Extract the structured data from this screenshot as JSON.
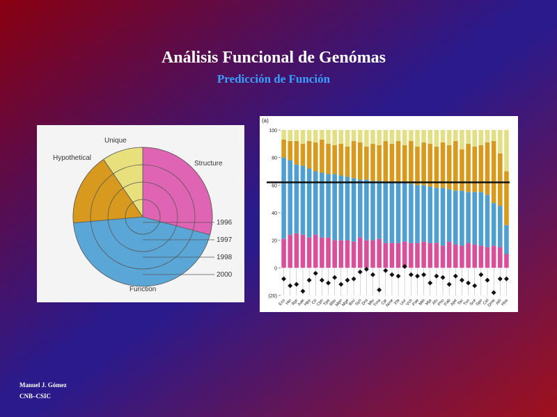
{
  "title": "Análisis Funcional de Genómas",
  "subtitle": "Predicción de Función",
  "footer": [
    "Manuel J. Gómez",
    "CNB–CSIC"
  ],
  "figure_left": {
    "unique": "Unique",
    "hypothetical": "Hypothetical",
    "structure": "Structure",
    "function": "Function",
    "years": [
      "1996",
      "1997",
      "1998",
      "2000"
    ]
  },
  "chart_data": {
    "type": "bar",
    "stacked": true,
    "panel_label": "(a)",
    "categories": [
      "Eco",
      "Hin",
      "Rpr",
      "Aae",
      "Hpy",
      "Ctr",
      "Cpn",
      "Tpa",
      "Bbu",
      "Mpn",
      "Mge",
      "Bsu",
      "Syn",
      "Dra",
      "Mtu",
      "Tma",
      "Cje",
      "Nme",
      "Xfa",
      "Uur",
      "Vch",
      "Pae",
      "Mth",
      "Mja",
      "Afu",
      "Pho",
      "Pab",
      "Ape",
      "Tac",
      "Tvo",
      "Sce",
      "Spo",
      "Cel",
      "Dme",
      "Ath",
      "Hsa"
    ],
    "series": [
      {
        "color": "#d9509a",
        "values": [
          21,
          24,
          25,
          24,
          22,
          24,
          22,
          22,
          20,
          20,
          20,
          19,
          22,
          20,
          20,
          21,
          18,
          18,
          18,
          19,
          18,
          18,
          19,
          18,
          18,
          16,
          19,
          17,
          16,
          18,
          17,
          16,
          15,
          16,
          15,
          10
        ]
      },
      {
        "color": "#4f9fd0",
        "values": [
          59,
          54,
          50,
          50,
          50,
          46,
          47,
          46,
          48,
          47,
          46,
          46,
          42,
          44,
          43,
          42,
          44,
          44,
          44,
          43,
          43,
          42,
          41,
          41,
          40,
          42,
          38,
          39,
          40,
          37,
          38,
          39,
          38,
          31,
          30,
          21
        ]
      },
      {
        "color": "#d79a1c",
        "values": [
          13,
          14,
          17,
          16,
          20,
          21,
          24,
          22,
          21,
          23,
          22,
          27,
          27,
          24,
          27,
          26,
          30,
          28,
          30,
          27,
          31,
          28,
          31,
          31,
          30,
          33,
          32,
          36,
          30,
          35,
          33,
          34,
          38,
          45,
          38,
          39
        ]
      },
      {
        "color": "#e3df86",
        "values": [
          7,
          8,
          8,
          10,
          8,
          9,
          7,
          10,
          11,
          10,
          12,
          8,
          9,
          12,
          10,
          11,
          8,
          10,
          8,
          11,
          8,
          12,
          9,
          10,
          12,
          9,
          11,
          8,
          14,
          10,
          12,
          11,
          9,
          8,
          17,
          30
        ]
      }
    ],
    "markers": {
      "color": "#111111",
      "values": [
        -8,
        -13,
        -12,
        -17,
        -9,
        -4,
        -9,
        -11,
        -7,
        -12,
        -9,
        -8,
        -3,
        -1,
        -5,
        -16,
        -2,
        -5,
        -6,
        1,
        -5,
        -6,
        -5,
        -11,
        -6,
        -7,
        -12,
        -6,
        -9,
        -11,
        -13,
        -5,
        -9,
        -18,
        -8,
        -8
      ]
    },
    "reference_line": 62,
    "ylim": [
      -20,
      100
    ],
    "yticks": [
      100,
      80,
      60,
      40,
      20,
      0,
      {
        "value": -20,
        "label": "(20)"
      }
    ]
  }
}
